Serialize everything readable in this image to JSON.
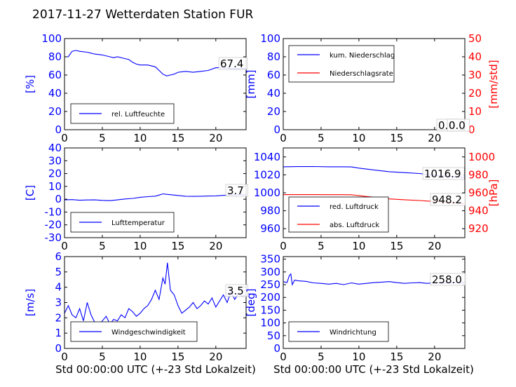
{
  "title": "2017-11-27 Wetterdaten Station FUR",
  "xlabel": "Std 00:00:00 UTC (+-23 Std Lokalzeit)",
  "colors": {
    "left_axis": "#0000ff",
    "right_axis": "#ff0000",
    "grid": "#000000",
    "legend_border": "#000000"
  },
  "chart_data": [
    {
      "id": "humidity",
      "type": "line",
      "ylabel": "[%]",
      "ylim": [
        0,
        100
      ],
      "yticks": [
        0,
        20,
        40,
        60,
        80,
        100
      ],
      "xlim": [
        0,
        24
      ],
      "xticks": [
        0,
        5,
        10,
        15,
        20
      ],
      "legend": [
        "rel. Luftfeuchte"
      ],
      "annotation": "67.4",
      "series": [
        {
          "name": "rel. Luftfeuchte",
          "color": "#0000ff",
          "x": [
            0,
            0.5,
            1,
            1.5,
            2,
            3,
            4,
            5,
            6,
            6.5,
            7,
            8,
            8.5,
            9,
            9.5,
            10,
            11,
            12,
            12.5,
            13,
            13.5,
            14,
            14.5,
            15,
            16,
            17,
            18,
            19,
            20,
            21,
            22,
            23,
            24
          ],
          "y": [
            80,
            80,
            86,
            87,
            86,
            85,
            83,
            82,
            80,
            79,
            80,
            78,
            77,
            74,
            72,
            71,
            71,
            69,
            65,
            61,
            59,
            60,
            61,
            63,
            64,
            63,
            64,
            65,
            68,
            68,
            67,
            67,
            67
          ]
        }
      ]
    },
    {
      "id": "precip",
      "type": "line",
      "ylabel": "[mm]",
      "ylim": [
        0,
        100
      ],
      "yticks": [
        0,
        20,
        40,
        60,
        80,
        100
      ],
      "y2label": "[mm/std]",
      "y2lim": [
        0,
        50
      ],
      "y2ticks": [
        0,
        10,
        20,
        30,
        40,
        50
      ],
      "xlim": [
        0,
        24
      ],
      "xticks": [
        0,
        5,
        10,
        15,
        20
      ],
      "legend": [
        "kum. Niederschlag",
        "Niederschlagsrate"
      ],
      "annotations": [
        "0.0",
        "0.0"
      ],
      "series": [
        {
          "name": "kum. Niederschlag",
          "color": "#0000ff",
          "axis": "left",
          "x": [
            0,
            24
          ],
          "y": [
            0,
            0
          ]
        },
        {
          "name": "Niederschlagsrate",
          "color": "#ff0000",
          "axis": "right",
          "x": [
            0,
            24
          ],
          "y": [
            0,
            0
          ]
        }
      ]
    },
    {
      "id": "temperature",
      "type": "line",
      "ylabel": "[C]",
      "ylim": [
        -30,
        40
      ],
      "yticks": [
        -30,
        -20,
        -10,
        0,
        10,
        20,
        30,
        40
      ],
      "xlim": [
        0,
        24
      ],
      "xticks": [
        0,
        5,
        10,
        15,
        20
      ],
      "legend": [
        "Lufttemperatur"
      ],
      "annotation": "3.7",
      "series": [
        {
          "name": "Lufttemperatur",
          "color": "#0000ff",
          "x": [
            0,
            1,
            2,
            3,
            4,
            5,
            6,
            7,
            8,
            9,
            10,
            11,
            12,
            12.5,
            13,
            13.5,
            14,
            15,
            16,
            17,
            18,
            19,
            20,
            21,
            22,
            23,
            24
          ],
          "y": [
            -0.5,
            -0.3,
            -0.8,
            -0.6,
            -0.5,
            -0.9,
            -1.1,
            -0.5,
            0.2,
            0.6,
            1.5,
            2.0,
            2.4,
            3.2,
            4.2,
            3.8,
            3.5,
            2.9,
            2.3,
            2.2,
            2.3,
            2.5,
            2.6,
            3.0,
            3.3,
            3.5,
            3.7
          ]
        }
      ]
    },
    {
      "id": "pressure",
      "type": "line",
      "ylabel": "",
      "ylim": [
        950,
        1050
      ],
      "yticks": [
        960,
        980,
        1000,
        1020,
        1040
      ],
      "y2label": "[hPa]",
      "y2lim": [
        910,
        1010
      ],
      "y2ticks": [
        920,
        940,
        960,
        980,
        1000
      ],
      "xlim": [
        0,
        24
      ],
      "xticks": [
        0,
        5,
        10,
        15,
        20
      ],
      "legend": [
        "red. Luftdruck",
        "abs. Luftdruck"
      ],
      "annotations": [
        "1016.9",
        "948.2"
      ],
      "series": [
        {
          "name": "red. Luftdruck",
          "color": "#0000ff",
          "axis": "left",
          "x": [
            0,
            2,
            4,
            6,
            8,
            9,
            10,
            12,
            14,
            16,
            18,
            20,
            22,
            24
          ],
          "y": [
            1029,
            1029.2,
            1029.3,
            1029.0,
            1029.0,
            1028.8,
            1027.5,
            1025.5,
            1023.5,
            1022.5,
            1021.5,
            1019.5,
            1018.3,
            1016.9
          ]
        },
        {
          "name": "abs. Luftdruck",
          "color": "#ff0000",
          "axis": "right",
          "x": [
            0,
            2,
            4,
            6,
            8,
            9,
            10,
            12,
            14,
            16,
            18,
            20,
            22,
            24
          ],
          "y": [
            958.0,
            958.0,
            958.0,
            957.9,
            957.9,
            957.8,
            956.8,
            955.0,
            953.2,
            952.3,
            951.4,
            950.3,
            949.3,
            948.2
          ]
        }
      ]
    },
    {
      "id": "windspeed",
      "type": "line",
      "ylabel": "[m/s]",
      "ylim": [
        0,
        6
      ],
      "yticks": [
        0,
        1,
        2,
        3,
        4,
        5,
        6
      ],
      "xlim": [
        0,
        24
      ],
      "xticks": [
        0,
        5,
        10,
        15,
        20
      ],
      "legend": [
        "Windgeschwindigkeit"
      ],
      "annotation": "3.5",
      "series": [
        {
          "name": "Windgeschwindigkeit",
          "color": "#0000ff",
          "x": [
            0,
            0.5,
            1,
            1.5,
            2,
            2.5,
            3,
            3.5,
            4,
            4.5,
            5,
            5.5,
            6,
            6.5,
            7,
            7.5,
            8,
            8.5,
            9,
            9.5,
            10,
            10.5,
            11,
            11.5,
            12,
            12.5,
            13,
            13.3,
            13.6,
            14,
            14.5,
            15,
            15.5,
            16,
            16.5,
            17,
            17.5,
            18,
            18.5,
            19,
            19.5,
            20,
            20.5,
            21,
            21.5,
            22,
            22.5,
            23,
            23.5,
            24
          ],
          "y": [
            2.3,
            2.8,
            2.2,
            2.0,
            2.6,
            1.8,
            3.0,
            2.2,
            1.7,
            1.5,
            1.8,
            2.1,
            1.6,
            1.9,
            1.8,
            2.2,
            2.0,
            2.6,
            2.4,
            2.1,
            2.3,
            2.6,
            2.8,
            3.2,
            3.8,
            3.2,
            4.6,
            4.2,
            5.6,
            3.8,
            3.5,
            2.8,
            2.3,
            2.5,
            2.7,
            3.0,
            2.6,
            2.8,
            3.1,
            2.9,
            3.3,
            2.7,
            3.1,
            3.5,
            3.0,
            3.7,
            3.2,
            3.6,
            3.4,
            3.5
          ]
        }
      ]
    },
    {
      "id": "winddir",
      "type": "line",
      "ylabel": "[deg]",
      "ylim": [
        0,
        360
      ],
      "yticks": [
        0,
        50,
        100,
        150,
        200,
        250,
        300,
        350
      ],
      "xlim": [
        0,
        24
      ],
      "xticks": [
        0,
        5,
        10,
        15,
        20
      ],
      "legend": [
        "Windrichtung"
      ],
      "annotation": "258.0",
      "series": [
        {
          "name": "Windrichtung",
          "color": "#0000ff",
          "x": [
            0,
            0.5,
            0.8,
            1,
            1.2,
            1.5,
            2,
            3,
            4,
            5,
            6,
            7,
            8,
            9,
            10,
            11,
            12,
            13,
            14,
            15,
            16,
            17,
            18,
            19,
            20,
            21,
            22,
            23,
            24
          ],
          "y": [
            262,
            258,
            285,
            292,
            250,
            268,
            265,
            263,
            257,
            255,
            252,
            255,
            250,
            257,
            252,
            255,
            258,
            260,
            262,
            258,
            255,
            257,
            258,
            255,
            257,
            256,
            257,
            258,
            258
          ]
        }
      ]
    }
  ]
}
